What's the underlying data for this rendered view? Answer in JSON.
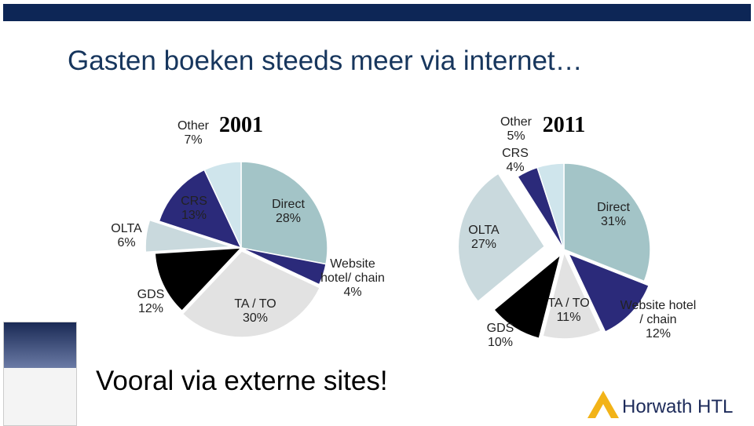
{
  "title": "Gasten boeken steeds meer via internet…",
  "subtitle": "Vooral via externe sites!",
  "logo": "Horwath HTL",
  "chart_data": [
    {
      "type": "pie",
      "title": "2001",
      "categories": [
        "Direct",
        "Website hotel/ chain",
        "TA / TO",
        "GDS",
        "OLTA",
        "CRS",
        "Other"
      ],
      "values": [
        28,
        4,
        30,
        12,
        6,
        13,
        7
      ],
      "value_labels": [
        "28%",
        "4%",
        "30%",
        "12%",
        "6%",
        "13%",
        "7%"
      ],
      "colors": [
        "#a3c4c7",
        "#2b2a7a",
        "#e2e2e2",
        "#000000",
        "#c9d9dd",
        "#2b2a7a",
        "#cfe5ec"
      ]
    },
    {
      "type": "pie",
      "title": "2011",
      "categories": [
        "Direct",
        "Website hotel / chain",
        "TA / TO",
        "GDS",
        "OLTA",
        "CRS",
        "Other"
      ],
      "values": [
        31,
        12,
        11,
        10,
        27,
        4,
        5
      ],
      "value_labels": [
        "31%",
        "12%",
        "11%",
        "10%",
        "27%",
        "4%",
        "5%"
      ],
      "colors": [
        "#a3c4c7",
        "#2b2a7a",
        "#e2e2e2",
        "#000000",
        "#c9d9dd",
        "#2b2a7a",
        "#cfe5ec"
      ]
    }
  ]
}
